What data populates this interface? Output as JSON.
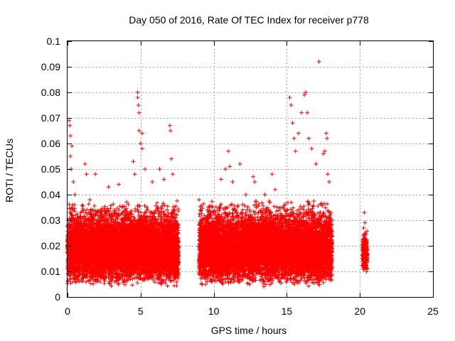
{
  "chart_data": {
    "type": "scatter",
    "title": "Day 050 of 2016, Rate Of TEC Index for receiver p778",
    "xlabel": "GPS time / hours",
    "ylabel": "ROTI / TECUs",
    "xlim": [
      0,
      25
    ],
    "ylim": [
      0,
      0.1
    ],
    "xticks": [
      0,
      5,
      10,
      15,
      20,
      25
    ],
    "xtick_labels": [
      "0",
      "5",
      "10",
      "15",
      "20",
      "25"
    ],
    "yticks": [
      0,
      0.01,
      0.02,
      0.03,
      0.04,
      0.05,
      0.06,
      0.07,
      0.08,
      0.09,
      0.1
    ],
    "ytick_labels": [
      "0",
      "0.01",
      "0.02",
      "0.03",
      "0.04",
      "0.05",
      "0.06",
      "0.07",
      "0.08",
      "0.09",
      "0.1"
    ],
    "grid": true,
    "marker": "+",
    "marker_color": "#ff0000",
    "series": [
      {
        "name": "ROTI",
        "data_segments": [
          {
            "x_start": 0.0,
            "x_end": 7.6,
            "y_min": 0.004,
            "y_max": 0.035
          },
          {
            "x_start": 9.0,
            "x_end": 18.1,
            "y_min": 0.004,
            "y_max": 0.035
          },
          {
            "x_start": 20.2,
            "x_end": 20.5,
            "y_min": 0.009,
            "y_max": 0.025
          }
        ],
        "notable_points": [
          {
            "x": 0.1,
            "y": 0.069
          },
          {
            "x": 0.15,
            "y": 0.067
          },
          {
            "x": 0.2,
            "y": 0.063
          },
          {
            "x": 0.2,
            "y": 0.055
          },
          {
            "x": 0.25,
            "y": 0.05
          },
          {
            "x": 0.3,
            "y": 0.059
          },
          {
            "x": 0.4,
            "y": 0.045
          },
          {
            "x": 0.5,
            "y": 0.04
          },
          {
            "x": 1.2,
            "y": 0.052
          },
          {
            "x": 1.3,
            "y": 0.048
          },
          {
            "x": 1.9,
            "y": 0.048
          },
          {
            "x": 2.8,
            "y": 0.043
          },
          {
            "x": 3.5,
            "y": 0.044
          },
          {
            "x": 4.5,
            "y": 0.053
          },
          {
            "x": 4.6,
            "y": 0.048
          },
          {
            "x": 4.8,
            "y": 0.08
          },
          {
            "x": 4.8,
            "y": 0.078
          },
          {
            "x": 4.85,
            "y": 0.075
          },
          {
            "x": 4.9,
            "y": 0.072
          },
          {
            "x": 4.9,
            "y": 0.065
          },
          {
            "x": 5.0,
            "y": 0.06
          },
          {
            "x": 5.1,
            "y": 0.064
          },
          {
            "x": 5.1,
            "y": 0.058
          },
          {
            "x": 5.3,
            "y": 0.05
          },
          {
            "x": 5.8,
            "y": 0.045
          },
          {
            "x": 6.3,
            "y": 0.05
          },
          {
            "x": 6.6,
            "y": 0.046
          },
          {
            "x": 7.0,
            "y": 0.067
          },
          {
            "x": 7.05,
            "y": 0.065
          },
          {
            "x": 7.1,
            "y": 0.054
          },
          {
            "x": 7.2,
            "y": 0.048
          },
          {
            "x": 9.0,
            "y": 0.038
          },
          {
            "x": 10.5,
            "y": 0.046
          },
          {
            "x": 10.8,
            "y": 0.05
          },
          {
            "x": 11.0,
            "y": 0.057
          },
          {
            "x": 11.1,
            "y": 0.051
          },
          {
            "x": 11.3,
            "y": 0.045
          },
          {
            "x": 11.8,
            "y": 0.052
          },
          {
            "x": 12.2,
            "y": 0.04
          },
          {
            "x": 12.7,
            "y": 0.047
          },
          {
            "x": 12.8,
            "y": 0.045
          },
          {
            "x": 13.5,
            "y": 0.04
          },
          {
            "x": 14.0,
            "y": 0.048
          },
          {
            "x": 14.2,
            "y": 0.042
          },
          {
            "x": 15.2,
            "y": 0.078
          },
          {
            "x": 15.3,
            "y": 0.075
          },
          {
            "x": 15.4,
            "y": 0.068
          },
          {
            "x": 15.5,
            "y": 0.062
          },
          {
            "x": 15.6,
            "y": 0.057
          },
          {
            "x": 15.8,
            "y": 0.064
          },
          {
            "x": 16.0,
            "y": 0.072
          },
          {
            "x": 16.2,
            "y": 0.079
          },
          {
            "x": 16.3,
            "y": 0.08
          },
          {
            "x": 16.4,
            "y": 0.072
          },
          {
            "x": 16.5,
            "y": 0.062
          },
          {
            "x": 16.7,
            "y": 0.058
          },
          {
            "x": 17.0,
            "y": 0.052
          },
          {
            "x": 17.2,
            "y": 0.092
          },
          {
            "x": 17.5,
            "y": 0.056
          },
          {
            "x": 17.6,
            "y": 0.057
          },
          {
            "x": 17.7,
            "y": 0.064
          },
          {
            "x": 17.75,
            "y": 0.062
          },
          {
            "x": 17.8,
            "y": 0.048
          },
          {
            "x": 17.9,
            "y": 0.045
          },
          {
            "x": 20.3,
            "y": 0.033
          },
          {
            "x": 20.35,
            "y": 0.029
          },
          {
            "x": 20.4,
            "y": 0.025
          }
        ]
      }
    ]
  }
}
